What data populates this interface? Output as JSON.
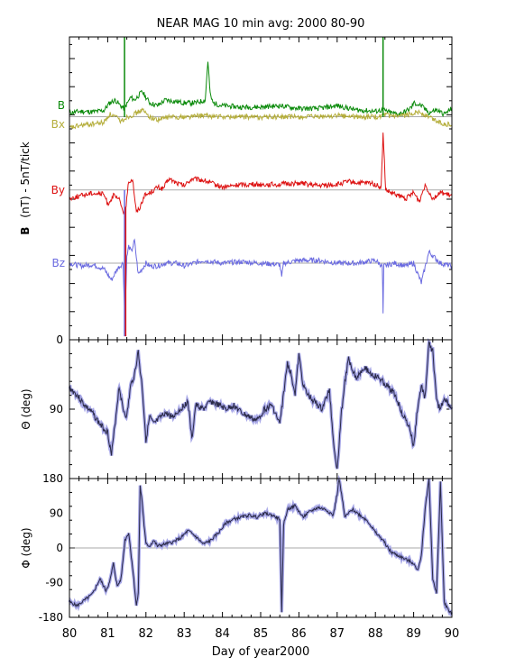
{
  "title": "NEAR MAG 10 min avg: 2000 80-90",
  "colors": {
    "B": "#0a8a0a",
    "Bx": "#b5ae3c",
    "By": "#dd1111",
    "Bz": "#6a6ae0",
    "angle_line": "#2a2a48",
    "angle_band": "#a8a8e8"
  },
  "chart_data": [
    {
      "type": "line",
      "panel": "B",
      "ylabel_bold": "B",
      "ylabel_rest": "(nT) - 5nT/tick",
      "y_zero_label": "0",
      "xlim": [
        80,
        90
      ],
      "grid": false,
      "series": [
        {
          "name": "B",
          "color": "#0a8a0a",
          "baseline": 26,
          "x": [
            80,
            80.3,
            80.6,
            80.9,
            81.05,
            81.2,
            81.3,
            81.42,
            81.5,
            81.6,
            81.7,
            81.8,
            81.9,
            82.1,
            82.3,
            82.5,
            82.8,
            83.0,
            83.3,
            83.55,
            83.62,
            83.68,
            83.75,
            84.0,
            84.5,
            85.0,
            85.5,
            86.0,
            86.5,
            87.0,
            87.5,
            88.0,
            88.2,
            88.4,
            88.6,
            88.8,
            88.95,
            89.0,
            89.2,
            89.4,
            89.6,
            89.8,
            90
          ],
          "y": [
            27.5,
            28,
            27.8,
            28.3,
            31,
            32,
            30.5,
            29,
            30.5,
            33,
            32,
            33.5,
            35,
            31,
            30,
            32,
            31.5,
            31,
            31,
            32,
            46,
            34,
            31,
            30,
            29.5,
            29.5,
            30,
            29,
            29,
            30,
            28.5,
            28,
            28.5,
            27.5,
            27,
            28,
            29.5,
            31,
            30,
            27.5,
            28.5,
            27,
            29
          ]
        },
        {
          "name": "Bx",
          "color": "#b5ae3c",
          "baseline": 26,
          "x": [
            80,
            80.3,
            80.6,
            80.9,
            81.05,
            81.2,
            81.35,
            81.5,
            81.7,
            81.9,
            82.1,
            82.3,
            82.6,
            83.0,
            83.5,
            84.0,
            84.5,
            85.0,
            85.5,
            86.0,
            86.5,
            87.0,
            87.5,
            88.0,
            88.3,
            88.6,
            88.9,
            89.1,
            89.4,
            89.7,
            90
          ],
          "y": [
            22,
            23,
            23.5,
            24,
            27,
            26,
            24.5,
            26,
            27,
            28.5,
            26,
            25,
            26,
            26,
            26.5,
            26,
            26,
            26,
            26,
            26,
            26,
            26.5,
            26,
            26,
            26.5,
            26,
            27,
            28,
            26,
            24,
            23
          ]
        },
        {
          "name": "By",
          "color": "#dd1111",
          "baseline": 0,
          "x": [
            80,
            80.3,
            80.6,
            80.9,
            81.0,
            81.15,
            81.3,
            81.45,
            81.55,
            81.65,
            81.75,
            81.85,
            81.95,
            82.1,
            82.3,
            82.45,
            82.6,
            82.8,
            83.0,
            83.2,
            83.5,
            84.0,
            84.5,
            85.0,
            85.5,
            86.0,
            86.5,
            87.0,
            87.3,
            87.6,
            87.9,
            88.15,
            88.2,
            88.27,
            88.4,
            88.6,
            88.8,
            89.0,
            89.15,
            89.3,
            89.5,
            89.7,
            90
          ],
          "y": [
            -3,
            -2,
            -1,
            -1.5,
            -5,
            -2,
            -3.5,
            -9,
            3,
            4,
            -8,
            -6,
            -2,
            -1,
            1,
            0.5,
            4,
            2.5,
            1.5,
            4,
            3.5,
            1,
            2,
            2,
            2,
            2.5,
            1.5,
            2,
            3,
            2.5,
            2.5,
            1,
            20,
            0,
            -1,
            -2,
            -3,
            -1,
            -4,
            2,
            -3,
            -1,
            -2
          ]
        },
        {
          "name": "Bz",
          "color": "#6a6ae0",
          "baseline": -26,
          "x": [
            80,
            80.3,
            80.6,
            80.9,
            81.1,
            81.25,
            81.4,
            81.45,
            81.5,
            81.55,
            81.62,
            81.7,
            81.8,
            81.9,
            82.0,
            82.1,
            82.3,
            82.5,
            82.8,
            83.0,
            83.5,
            84.0,
            84.5,
            85.0,
            85.5,
            85.55,
            85.6,
            86.0,
            86.5,
            87.0,
            87.5,
            88.0,
            88.18,
            88.2,
            88.22,
            88.5,
            88.8,
            89.0,
            89.2,
            89.4,
            89.7,
            90
          ],
          "y": [
            -26,
            -27,
            -26.5,
            -28,
            -32,
            -28,
            -26,
            -46,
            -24,
            -20,
            -22,
            -18,
            -30,
            -28,
            -26,
            -27,
            -27,
            -26,
            -26,
            -27,
            -25,
            -26,
            -25.5,
            -26,
            -26.5,
            -31,
            -26,
            -25,
            -25,
            -26,
            -26,
            -25,
            -27,
            -44,
            -27,
            -26,
            -27,
            -26,
            -33,
            -22,
            -26,
            -27
          ]
        }
      ],
      "spikes": [
        {
          "series": "B",
          "x": 81.44,
          "y_top": 93
        },
        {
          "series": "Bz",
          "x": 81.44,
          "y_bottom": -52,
          "y_top": 0
        },
        {
          "series": "By",
          "x": 81.47,
          "y_bottom": -52,
          "y_top": -6
        },
        {
          "series": "B",
          "x": 88.2,
          "y_bottom": 26,
          "y_top": 93
        }
      ]
    },
    {
      "type": "line",
      "panel": "theta",
      "ylabel": "Θ (deg)",
      "tick_labels": [
        {
          "value": 90,
          "label": "90"
        }
      ],
      "ylim": [
        180,
        0
      ],
      "xlim": [
        80,
        90
      ],
      "grid": false,
      "x": [
        80,
        80.2,
        80.4,
        80.6,
        80.8,
        81.0,
        81.1,
        81.2,
        81.3,
        81.4,
        81.5,
        81.6,
        81.7,
        81.8,
        81.85,
        81.9,
        82.0,
        82.1,
        82.2,
        82.3,
        82.5,
        82.7,
        82.9,
        83.1,
        83.2,
        83.3,
        83.5,
        83.7,
        83.9,
        84.1,
        84.3,
        84.5,
        84.7,
        84.9,
        85.1,
        85.3,
        85.5,
        85.7,
        85.8,
        85.9,
        86.0,
        86.1,
        86.2,
        86.4,
        86.6,
        86.8,
        86.9,
        87.0,
        87.1,
        87.2,
        87.3,
        87.5,
        87.7,
        87.9,
        88.1,
        88.3,
        88.5,
        88.7,
        88.9,
        89.0,
        89.1,
        89.2,
        89.3,
        89.4,
        89.5,
        89.6,
        89.7,
        89.8,
        90
      ],
      "y": [
        62,
        72,
        85,
        95,
        110,
        120,
        150,
        105,
        60,
        90,
        100,
        60,
        45,
        15,
        40,
        60,
        130,
        100,
        110,
        105,
        95,
        100,
        90,
        80,
        130,
        85,
        90,
        80,
        85,
        90,
        85,
        95,
        100,
        105,
        90,
        85,
        110,
        30,
        45,
        70,
        20,
        55,
        70,
        80,
        90,
        65,
        130,
        170,
        100,
        55,
        25,
        50,
        35,
        45,
        50,
        60,
        70,
        95,
        115,
        140,
        90,
        60,
        75,
        5,
        15,
        80,
        90,
        75,
        90
      ]
    },
    {
      "type": "line",
      "panel": "phi",
      "ylabel": "Φ (deg)",
      "tick_labels": [
        {
          "value": 180,
          "label": "180"
        },
        {
          "value": 90,
          "label": "90"
        },
        {
          "value": 0,
          "label": "0"
        },
        {
          "value": -90,
          "label": "-90"
        },
        {
          "value": -180,
          "label": "-180"
        }
      ],
      "ylim": [
        -180,
        180
      ],
      "xlim": [
        80,
        90
      ],
      "xlabel": "Day of year2000",
      "x_tick_labels": [
        "80",
        "81",
        "82",
        "83",
        "84",
        "85",
        "86",
        "87",
        "88",
        "89",
        "90"
      ],
      "grid": false,
      "x": [
        80,
        80.2,
        80.4,
        80.6,
        80.8,
        80.95,
        81.05,
        81.15,
        81.25,
        81.35,
        81.45,
        81.55,
        81.65,
        81.75,
        81.8,
        81.85,
        81.9,
        81.95,
        82.0,
        82.1,
        82.2,
        82.3,
        82.5,
        82.7,
        82.9,
        83.1,
        83.3,
        83.5,
        83.7,
        83.9,
        84.1,
        84.3,
        84.5,
        84.7,
        84.9,
        85.1,
        85.3,
        85.5,
        85.55,
        85.6,
        85.7,
        85.9,
        86.1,
        86.3,
        86.5,
        86.7,
        86.9,
        87.0,
        87.05,
        87.1,
        87.2,
        87.4,
        87.6,
        87.8,
        88.0,
        88.2,
        88.4,
        88.6,
        88.8,
        89.0,
        89.1,
        89.2,
        89.3,
        89.4,
        89.5,
        89.6,
        89.7,
        89.8,
        89.9,
        90
      ],
      "y": [
        -140,
        -150,
        -135,
        -120,
        -80,
        -110,
        -90,
        -40,
        -100,
        -80,
        20,
        40,
        -50,
        -150,
        -120,
        160,
        120,
        60,
        10,
        5,
        20,
        5,
        10,
        15,
        25,
        45,
        30,
        10,
        20,
        40,
        65,
        75,
        80,
        85,
        80,
        90,
        85,
        75,
        -170,
        60,
        100,
        110,
        80,
        95,
        105,
        100,
        85,
        140,
        180,
        150,
        80,
        100,
        85,
        70,
        40,
        20,
        -10,
        -20,
        -30,
        -40,
        -60,
        -20,
        100,
        180,
        -80,
        -120,
        170,
        -140,
        -160,
        -170
      ]
    }
  ]
}
